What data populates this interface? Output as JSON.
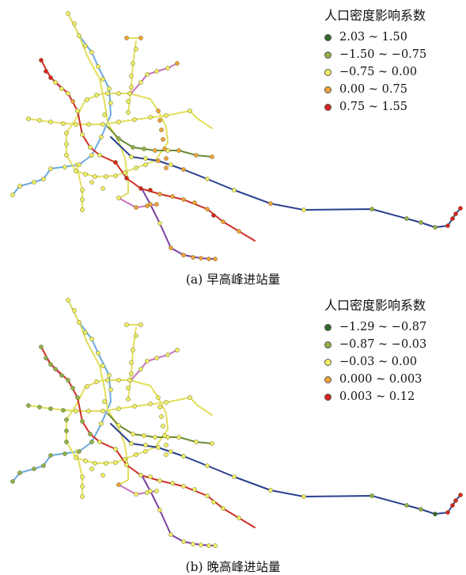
{
  "panels": [
    {
      "caption": "(a) 早高峰进站量",
      "legend": {
        "title": "人口密度影响系数",
        "items": [
          {
            "label": "2.03 ~ 1.50",
            "color": "#2e6b2a"
          },
          {
            "label": "−1.50 ~ −0.75",
            "color": "#8fb04a"
          },
          {
            "label": "−0.75 ~ 0.00",
            "color": "#f1ef63"
          },
          {
            "label": "0.00 ~ 0.75",
            "color": "#efa23a"
          },
          {
            "label": "0.75 ~ 1.55",
            "color": "#d9231f"
          }
        ]
      }
    },
    {
      "caption": "(b) 晚高峰进站量",
      "legend": {
        "title": "人口密度影响系数",
        "items": [
          {
            "label": "−1.29 ~ −0.87",
            "color": "#2e6b2a"
          },
          {
            "label": "−0.87 ~ −0.03",
            "color": "#8fb04a"
          },
          {
            "label": "−0.03 ~ 0.00",
            "color": "#f1ef63"
          },
          {
            "label": "0.000 ~ 0.003",
            "color": "#efa23a"
          },
          {
            "label": "0.003 ~ 0.12",
            "color": "#d9231f"
          }
        ]
      }
    }
  ],
  "line_colors": {
    "blue": "#6aa9dd",
    "yellow": "#e2df5c",
    "magenta": "#c873b9",
    "olive": "#6a8a35",
    "red": "#cf2e23",
    "navy": "#2a3f8f",
    "purple": "#7b3fa0"
  },
  "station_colors": {
    "dark_green": "#2e6b2a",
    "light_green": "#8fb04a",
    "yellow": "#f1ef63",
    "orange": "#efa23a",
    "red": "#d9231f"
  }
}
